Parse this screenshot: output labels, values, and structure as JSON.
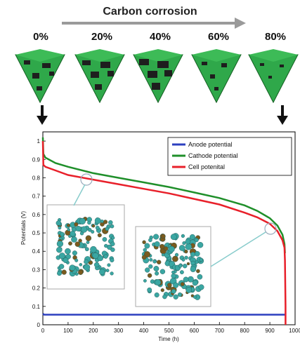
{
  "header": {
    "title": "Carbon corrosion",
    "percents": [
      "0%",
      "20%",
      "40%",
      "60%",
      "80%"
    ]
  },
  "colors": {
    "anode": "#2c3fbf",
    "cathode": "#1f8f2a",
    "cell": "#e8202a",
    "cube_green": "#2fa84a",
    "cube_dark": "#1e1e1e",
    "particle_teal": "#3aa6a2",
    "particle_brown": "#7a5a1e"
  },
  "chart_data": {
    "type": "line",
    "xlabel": "Time (h)",
    "ylabel": "Potentials (V)",
    "xlim": [
      0,
      1000
    ],
    "ylim": [
      0,
      1.05
    ],
    "xticks": [
      "0",
      "100",
      "200",
      "300",
      "400",
      "500",
      "600",
      "700",
      "800",
      "900",
      "1000"
    ],
    "yticks": [
      "0",
      "0.1",
      "0.2",
      "0.3",
      "0.4",
      "0.5",
      "0.6",
      "0.7",
      "0.8",
      "0.9",
      "1"
    ],
    "legend_position": "top-right",
    "series": [
      {
        "name": "Anode potential",
        "x": [
          0,
          5,
          960
        ],
        "y": [
          0.06,
          0.055,
          0.055
        ]
      },
      {
        "name": "Cathode potential",
        "x": [
          0,
          2,
          10,
          50,
          100,
          200,
          300,
          400,
          500,
          600,
          700,
          800,
          850,
          900,
          930,
          950,
          958,
          960
        ],
        "y": [
          1.02,
          0.93,
          0.91,
          0.88,
          0.86,
          0.825,
          0.8,
          0.775,
          0.75,
          0.72,
          0.69,
          0.65,
          0.62,
          0.58,
          0.54,
          0.49,
          0.44,
          0.39
        ]
      },
      {
        "name": "Cell potenital",
        "x": [
          0,
          2,
          10,
          50,
          100,
          200,
          300,
          400,
          500,
          600,
          700,
          800,
          850,
          900,
          930,
          950,
          958,
          960,
          962,
          962
        ],
        "y": [
          1.0,
          0.87,
          0.86,
          0.84,
          0.815,
          0.79,
          0.765,
          0.74,
          0.715,
          0.685,
          0.655,
          0.61,
          0.585,
          0.55,
          0.51,
          0.46,
          0.42,
          0.35,
          0.1,
          0.0
        ]
      }
    ]
  }
}
